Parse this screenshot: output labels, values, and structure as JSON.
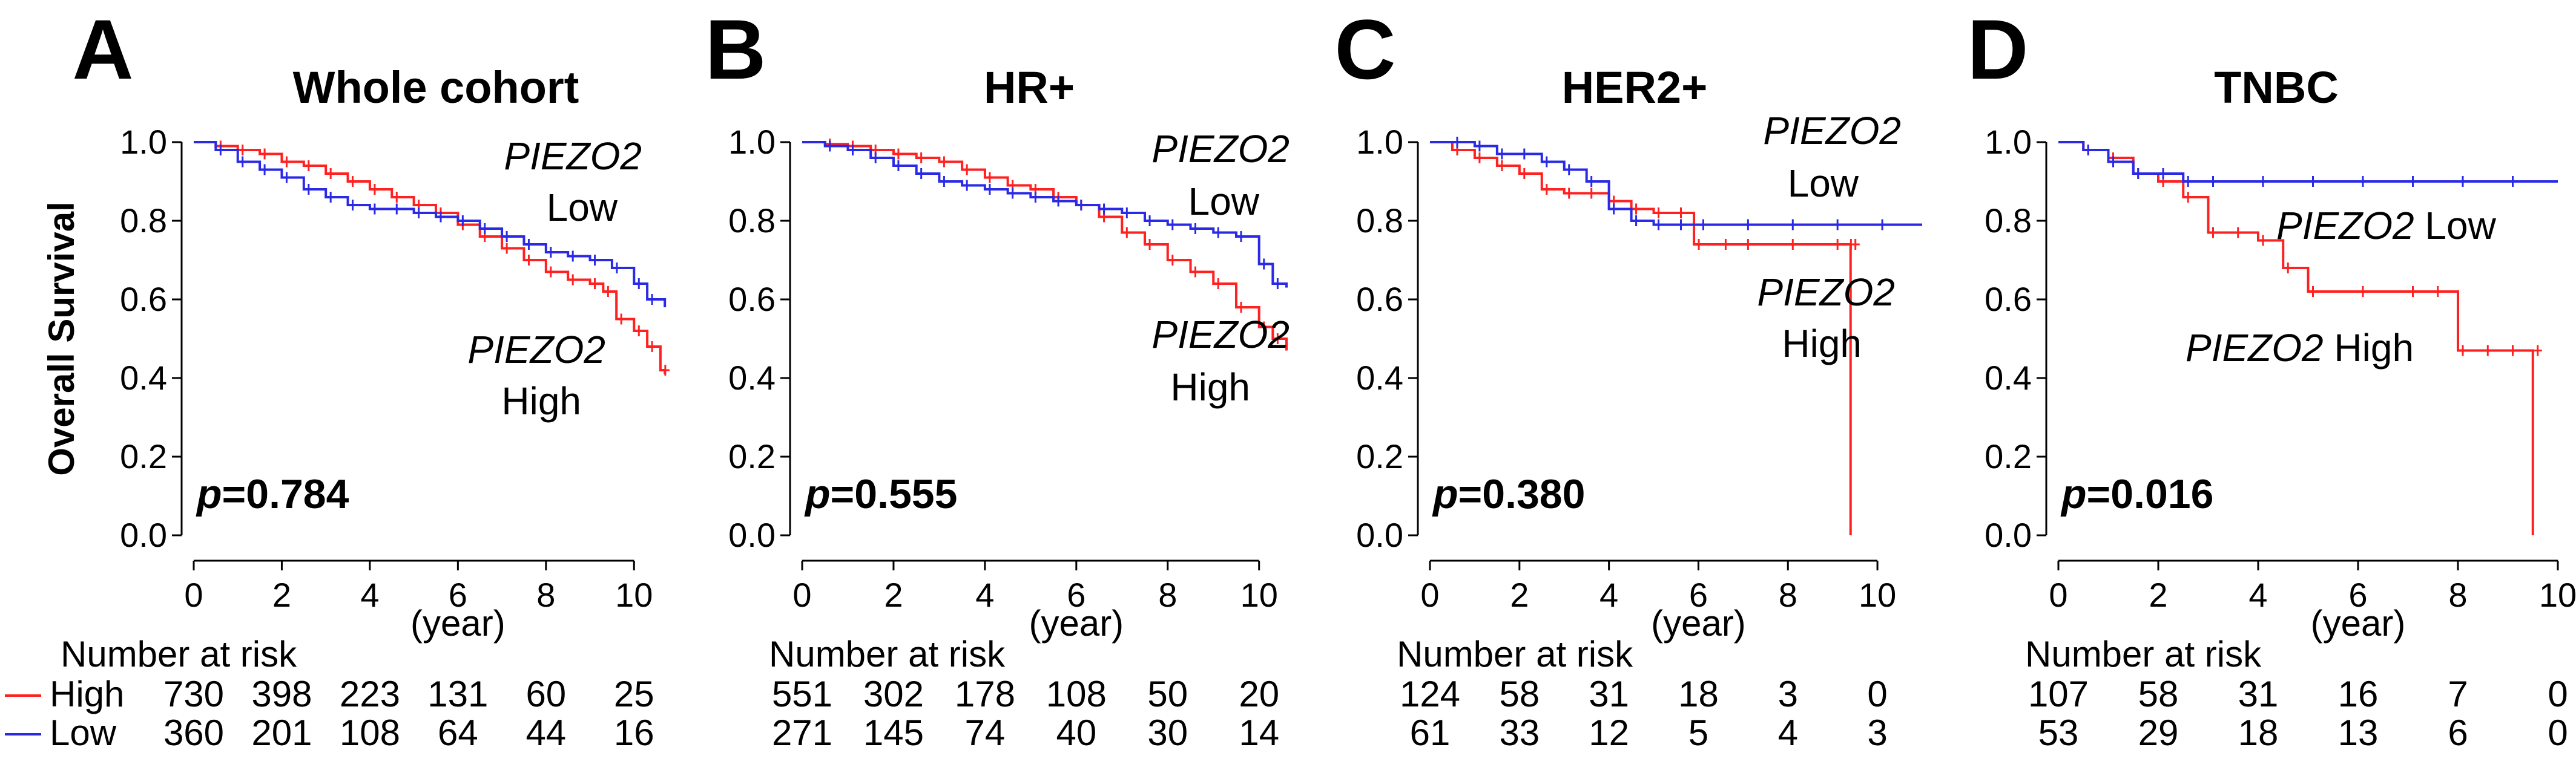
{
  "colors": {
    "high": "#ff2020",
    "low": "#2a2ae6"
  },
  "shared": {
    "ylabel": "Overall Survival",
    "xlabel": "(year)",
    "risk_title": "Number at risk",
    "legend": [
      {
        "key": "high",
        "label": "High"
      },
      {
        "key": "low",
        "label": "Low"
      }
    ]
  },
  "chart_data": [
    {
      "type": "line",
      "letter": "A",
      "title": "Whole cohort",
      "p_label": "p",
      "p_value": "=0.784",
      "xlim": [
        0,
        11
      ],
      "ylim": [
        0,
        1.0
      ],
      "x_ticks": [
        "0",
        "2",
        "4",
        "6",
        "8",
        "10"
      ],
      "y_ticks": [
        "0.0",
        "0.2",
        "0.4",
        "0.6",
        "0.8",
        "1.0"
      ],
      "series_labels": {
        "low": [
          "PIEZO2",
          "Low"
        ],
        "high": [
          "PIEZO2",
          "High"
        ]
      },
      "series": [
        {
          "key": "high",
          "x": [
            0,
            0.5,
            1,
            1.5,
            2,
            2.5,
            3,
            3.5,
            4,
            4.5,
            5,
            5.5,
            6,
            6.5,
            7,
            7.5,
            8,
            8.5,
            9,
            9.3,
            9.6,
            10,
            10.3,
            10.6,
            10.7
          ],
          "y": [
            1.0,
            0.99,
            0.98,
            0.97,
            0.95,
            0.94,
            0.92,
            0.9,
            0.88,
            0.86,
            0.84,
            0.82,
            0.79,
            0.76,
            0.73,
            0.7,
            0.67,
            0.65,
            0.64,
            0.62,
            0.55,
            0.52,
            0.48,
            0.42,
            0.41
          ]
        },
        {
          "key": "low",
          "x": [
            0,
            0.5,
            1,
            1.5,
            2,
            2.5,
            3,
            3.5,
            4,
            4.5,
            5,
            5.5,
            6,
            6.5,
            7,
            7.5,
            8,
            8.5,
            9,
            9.5,
            10,
            10.3,
            10.7
          ],
          "y": [
            1.0,
            0.98,
            0.95,
            0.93,
            0.91,
            0.88,
            0.86,
            0.84,
            0.83,
            0.83,
            0.82,
            0.81,
            0.8,
            0.78,
            0.76,
            0.74,
            0.72,
            0.71,
            0.7,
            0.68,
            0.64,
            0.6,
            0.58
          ]
        }
      ],
      "risk": {
        "high": [
          "730",
          "398",
          "223",
          "131",
          "60",
          "25"
        ],
        "low": [
          "360",
          "201",
          "108",
          "64",
          "44",
          "16"
        ]
      }
    },
    {
      "type": "line",
      "letter": "B",
      "title": "HR+",
      "p_label": "p",
      "p_value": "=0.555",
      "xlim": [
        0,
        10.6
      ],
      "ylim": [
        0,
        1.0
      ],
      "x_ticks": [
        "0",
        "2",
        "4",
        "6",
        "8",
        "10"
      ],
      "y_ticks": [
        "0.0",
        "0.2",
        "0.4",
        "0.6",
        "0.8",
        "1.0"
      ],
      "series_labels": {
        "low": [
          "PIEZO2",
          "Low"
        ],
        "high": [
          "PIEZO2",
          "High"
        ]
      },
      "series": [
        {
          "key": "high",
          "x": [
            0,
            0.5,
            1,
            1.5,
            2,
            2.5,
            3,
            3.5,
            4,
            4.5,
            5,
            5.5,
            6,
            6.5,
            7,
            7.5,
            8,
            8.5,
            9,
            9.5,
            10,
            10.3,
            10.6
          ],
          "y": [
            1.0,
            0.995,
            0.99,
            0.98,
            0.97,
            0.96,
            0.95,
            0.93,
            0.91,
            0.89,
            0.88,
            0.86,
            0.84,
            0.81,
            0.77,
            0.74,
            0.7,
            0.67,
            0.64,
            0.58,
            0.53,
            0.5,
            0.47
          ]
        },
        {
          "key": "low",
          "x": [
            0,
            0.5,
            1,
            1.5,
            2,
            2.5,
            3,
            3.5,
            4,
            4.5,
            5,
            5.5,
            6,
            6.5,
            7,
            7.5,
            8,
            8.5,
            9,
            9.5,
            10,
            10.3,
            10.6
          ],
          "y": [
            1.0,
            0.99,
            0.98,
            0.96,
            0.94,
            0.92,
            0.9,
            0.89,
            0.88,
            0.87,
            0.86,
            0.85,
            0.84,
            0.83,
            0.82,
            0.8,
            0.79,
            0.78,
            0.77,
            0.76,
            0.69,
            0.64,
            0.63
          ]
        }
      ],
      "risk": {
        "high": [
          "551",
          "302",
          "178",
          "108",
          "50",
          "20"
        ],
        "low": [
          "271",
          "145",
          "74",
          "40",
          "30",
          "14"
        ]
      }
    },
    {
      "type": "line",
      "letter": "C",
      "title": "HER2+",
      "p_label": "p",
      "p_value": "=0.380",
      "xlim": [
        0,
        11
      ],
      "ylim": [
        0,
        1.0
      ],
      "x_ticks": [
        "0",
        "2",
        "4",
        "6",
        "8",
        "10"
      ],
      "y_ticks": [
        "0.0",
        "0.2",
        "0.4",
        "0.6",
        "0.8",
        "1.0"
      ],
      "series_labels": {
        "low": [
          "PIEZO2",
          "Low"
        ],
        "high": [
          "PIEZO2",
          "High"
        ]
      },
      "series": [
        {
          "key": "high",
          "x": [
            0,
            0.5,
            1,
            1.5,
            2,
            2.5,
            3,
            3.5,
            4,
            4.5,
            5,
            5.5,
            5.9,
            6.5,
            7,
            8,
            9,
            9.3,
            9.4,
            9.4
          ],
          "y": [
            1.0,
            0.98,
            0.96,
            0.94,
            0.92,
            0.88,
            0.87,
            0.87,
            0.85,
            0.83,
            0.82,
            0.82,
            0.74,
            0.74,
            0.74,
            0.74,
            0.74,
            0.74,
            0.74,
            0.0
          ]
        },
        {
          "key": "low",
          "x": [
            0,
            0.5,
            1,
            1.5,
            2,
            2.5,
            3,
            3.5,
            4,
            4.5,
            5,
            5.5,
            6,
            7,
            8,
            9,
            10,
            11
          ],
          "y": [
            1.0,
            1.0,
            0.99,
            0.97,
            0.97,
            0.95,
            0.93,
            0.9,
            0.83,
            0.8,
            0.79,
            0.79,
            0.79,
            0.79,
            0.79,
            0.79,
            0.79,
            0.79
          ]
        }
      ],
      "risk": {
        "high": [
          "124",
          "58",
          "31",
          "18",
          "3",
          "0"
        ],
        "low": [
          "61",
          "33",
          "12",
          "5",
          "4",
          "3"
        ]
      }
    },
    {
      "type": "line",
      "letter": "D",
      "title": "TNBC",
      "p_label": "p",
      "p_value": "=0.016",
      "xlim": [
        0,
        10
      ],
      "ylim": [
        0,
        1.0
      ],
      "x_ticks": [
        "0",
        "2",
        "4",
        "6",
        "8",
        "10"
      ],
      "y_ticks": [
        "0.0",
        "0.2",
        "0.4",
        "0.6",
        "0.8",
        "1.0"
      ],
      "series_labels": {
        "low": [
          "PIEZO2",
          "Low"
        ],
        "high": [
          "PIEZO2",
          "High"
        ]
      },
      "series": [
        {
          "key": "high",
          "x": [
            0,
            0.5,
            1,
            1.5,
            2,
            2.5,
            3,
            3.5,
            4,
            4.5,
            5,
            6,
            7,
            7.5,
            8,
            8.5,
            9,
            9.5,
            9.5
          ],
          "y": [
            1.0,
            0.98,
            0.96,
            0.92,
            0.9,
            0.86,
            0.77,
            0.77,
            0.75,
            0.68,
            0.62,
            0.62,
            0.62,
            0.62,
            0.47,
            0.47,
            0.47,
            0.47,
            0.0
          ]
        },
        {
          "key": "low",
          "x": [
            0,
            0.5,
            1,
            1.5,
            2,
            2.5,
            3,
            4,
            5,
            6,
            7,
            8,
            9,
            10
          ],
          "y": [
            1.0,
            0.98,
            0.95,
            0.92,
            0.92,
            0.9,
            0.9,
            0.9,
            0.9,
            0.9,
            0.9,
            0.9,
            0.9,
            0.9
          ]
        }
      ],
      "risk": {
        "high": [
          "107",
          "58",
          "31",
          "16",
          "7",
          "0"
        ],
        "low": [
          "53",
          "29",
          "18",
          "13",
          "6",
          "0"
        ]
      }
    }
  ]
}
